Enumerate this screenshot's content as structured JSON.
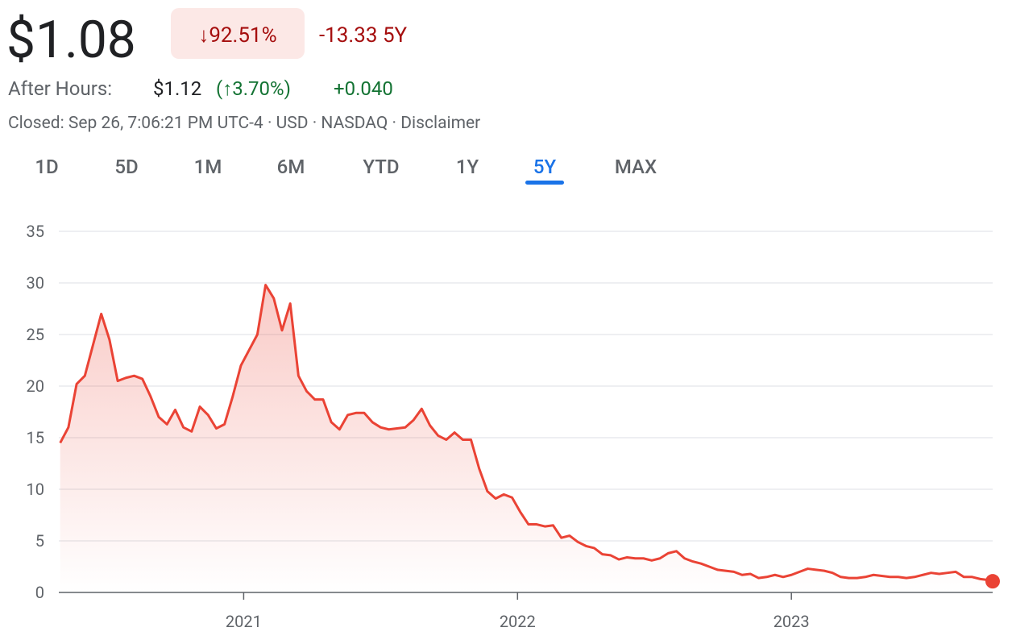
{
  "header": {
    "price": "$1.08",
    "change_percent": "↓92.51%",
    "change": "-13.33 5Y"
  },
  "after_hours": {
    "label": "After Hours:",
    "price": "$1.12",
    "change_percent": "(↑3.70%)",
    "change": "+0.040"
  },
  "status": "Closed: Sep 26, 7:06:21 PM UTC-4 · USD · NASDAQ · Disclaimer",
  "tabs": [
    "1D",
    "5D",
    "1M",
    "6M",
    "YTD",
    "1Y",
    "5Y",
    "MAX"
  ],
  "selected_tab": "5Y",
  "chart_data": {
    "type": "line",
    "color": "#ea4335",
    "x": [
      2020.33,
      2020.36,
      2020.39,
      2020.42,
      2020.45,
      2020.48,
      2020.51,
      2020.54,
      2020.57,
      2020.6,
      2020.63,
      2020.66,
      2020.69,
      2020.72,
      2020.75,
      2020.78,
      2020.81,
      2020.84,
      2020.87,
      2020.9,
      2020.93,
      2020.96,
      2020.99,
      2021.02,
      2021.05,
      2021.08,
      2021.11,
      2021.14,
      2021.17,
      2021.2,
      2021.23,
      2021.26,
      2021.29,
      2021.32,
      2021.35,
      2021.38,
      2021.41,
      2021.44,
      2021.47,
      2021.5,
      2021.53,
      2021.56,
      2021.59,
      2021.62,
      2021.65,
      2021.68,
      2021.71,
      2021.74,
      2021.77,
      2021.8,
      2021.83,
      2021.86,
      2021.89,
      2021.92,
      2021.95,
      2021.98,
      2022.01,
      2022.04,
      2022.07,
      2022.1,
      2022.13,
      2022.16,
      2022.19,
      2022.22,
      2022.25,
      2022.28,
      2022.31,
      2022.34,
      2022.37,
      2022.4,
      2022.43,
      2022.46,
      2022.49,
      2022.52,
      2022.55,
      2022.58,
      2022.61,
      2022.64,
      2022.67,
      2022.7,
      2022.73,
      2022.76,
      2022.79,
      2022.82,
      2022.85,
      2022.88,
      2022.91,
      2022.94,
      2022.97,
      2023.0,
      2023.03,
      2023.06,
      2023.09,
      2023.12,
      2023.15,
      2023.18,
      2023.21,
      2023.24,
      2023.27,
      2023.3,
      2023.33,
      2023.36,
      2023.39,
      2023.42,
      2023.45,
      2023.48,
      2023.51,
      2023.54,
      2023.57,
      2023.6,
      2023.63,
      2023.66,
      2023.69,
      2023.72,
      2023.735
    ],
    "values": [
      14.5,
      16,
      20.2,
      21,
      24,
      27,
      24.5,
      20.5,
      20.8,
      21,
      20.7,
      19,
      17,
      16.3,
      17.7,
      16,
      15.6,
      18,
      17.2,
      15.9,
      16.3,
      19,
      22,
      23.5,
      25,
      29.8,
      28.5,
      25.4,
      28,
      21,
      19.5,
      18.7,
      18.7,
      16.5,
      15.8,
      17.2,
      17.4,
      17.4,
      16.5,
      16,
      15.8,
      15.9,
      16,
      16.7,
      17.8,
      16.2,
      15.2,
      14.8,
      15.5,
      14.8,
      14.8,
      12,
      9.8,
      9.1,
      9.5,
      9.2,
      7.8,
      6.6,
      6.6,
      6.4,
      6.5,
      5.3,
      5.5,
      4.9,
      4.5,
      4.3,
      3.7,
      3.6,
      3.2,
      3.4,
      3.3,
      3.3,
      3.1,
      3.3,
      3.8,
      4.0,
      3.3,
      3.0,
      2.8,
      2.5,
      2.2,
      2.1,
      2.0,
      1.7,
      1.8,
      1.4,
      1.5,
      1.7,
      1.5,
      1.7,
      2.0,
      2.3,
      2.2,
      2.1,
      1.9,
      1.5,
      1.4,
      1.4,
      1.5,
      1.7,
      1.6,
      1.5,
      1.5,
      1.4,
      1.5,
      1.7,
      1.9,
      1.8,
      1.9,
      2.0,
      1.5,
      1.5,
      1.3,
      1.2,
      1.08
    ],
    "xlim": [
      2020.325,
      2023.735
    ],
    "xticks": [
      2021,
      2022,
      2023
    ],
    "ylim": [
      0,
      35
    ],
    "yticks": [
      0,
      5,
      10,
      15,
      20,
      25,
      30,
      35
    ],
    "grid": true
  }
}
